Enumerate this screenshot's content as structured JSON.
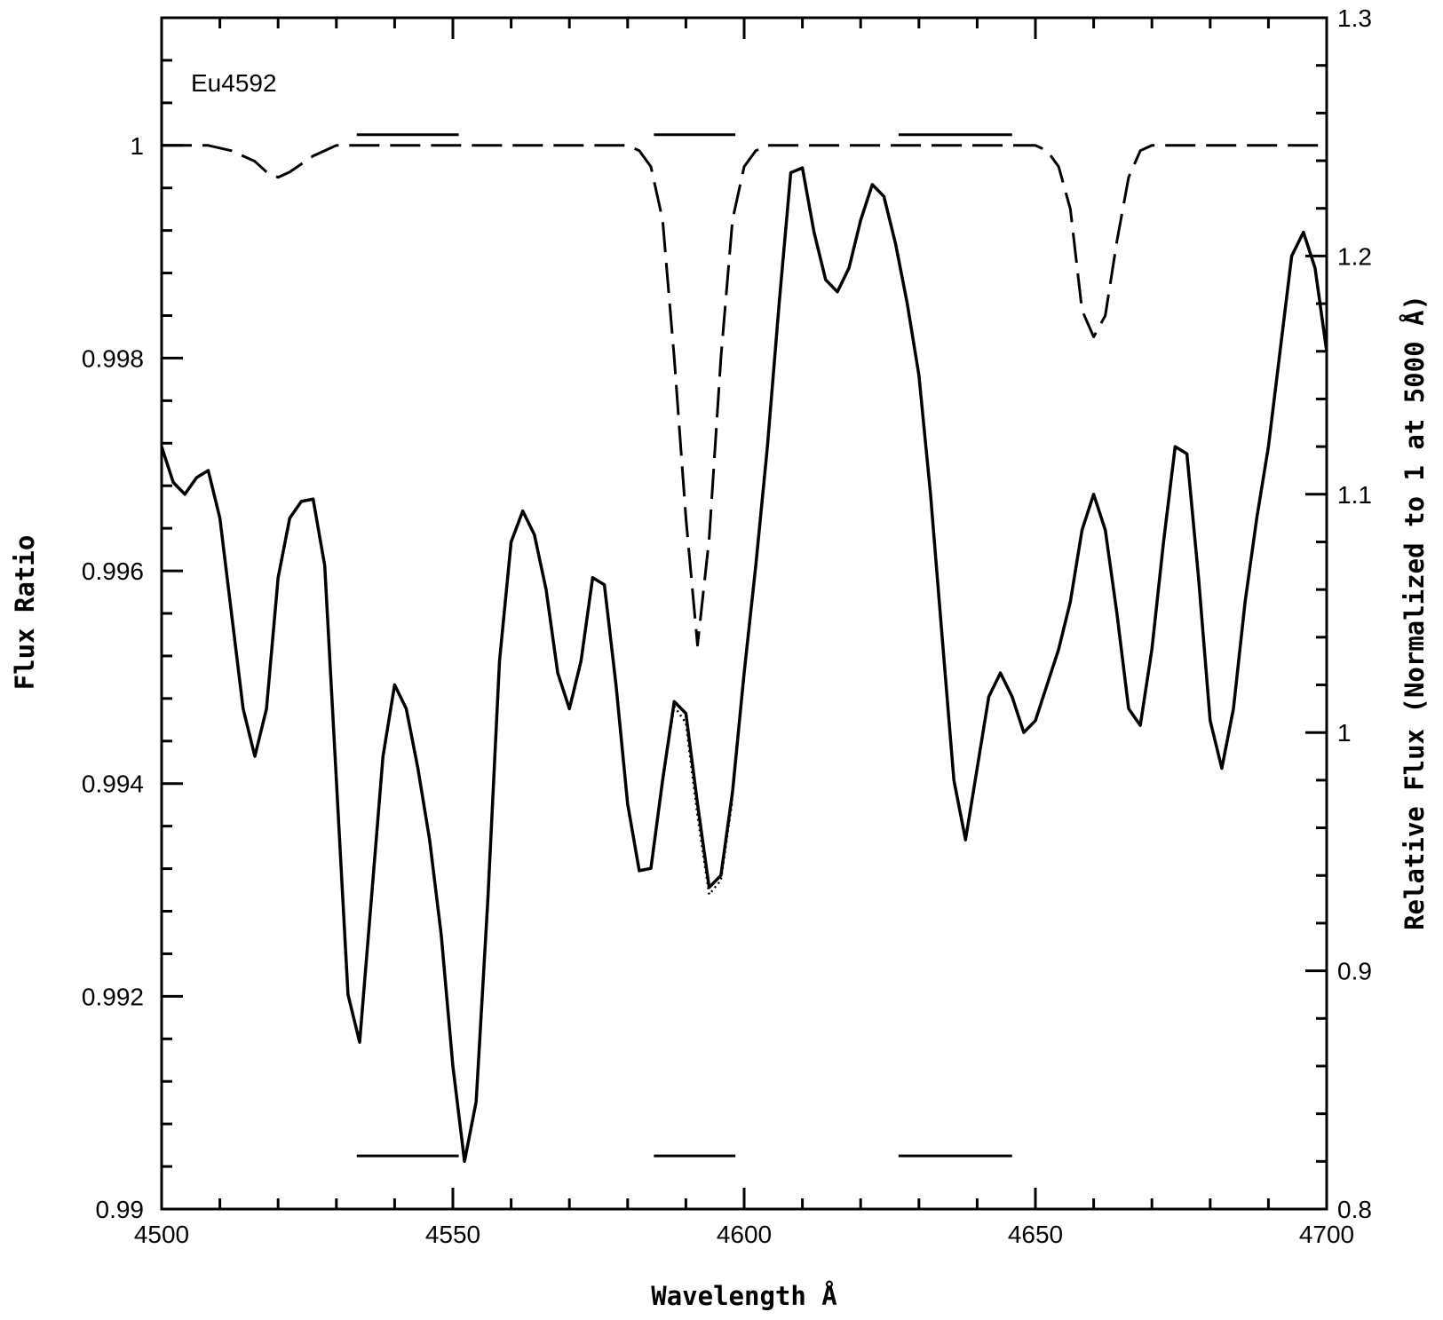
{
  "chart_data": {
    "type": "line",
    "annotation": "Eu4592",
    "xlabel": "Wavelength Å",
    "ylabel": "Flux Ratio",
    "y2label": "Relative Flux (Normalized to 1 at 5000 Å)",
    "xlim": [
      4500,
      4700
    ],
    "ylim": [
      0.99,
      1.0012
    ],
    "y2lim": [
      0.8,
      1.3
    ],
    "grid": false,
    "x_ticks": [
      4500,
      4550,
      4600,
      4650,
      4700
    ],
    "x_tick_labels": [
      "4500",
      "4550",
      "4600",
      "4650",
      "4700"
    ],
    "y_ticks": [
      0.99,
      0.992,
      0.994,
      0.996,
      0.998,
      1.0
    ],
    "y_tick_labels": [
      "0.99",
      "0.992",
      "0.994",
      "0.996",
      "0.998",
      "1"
    ],
    "y2_ticks": [
      0.8,
      0.9,
      1.0,
      1.1,
      1.2,
      1.3
    ],
    "y2_tick_labels": [
      "0.8",
      "0.9",
      "1",
      "1.1",
      "1.2",
      "1.3"
    ],
    "series": [
      {
        "style": "dashed",
        "axis": "left",
        "x": [
          4500,
          4508,
          4512,
          4516,
          4518,
          4520,
          4522,
          4526,
          4530,
          4560,
          4580,
          4582,
          4584,
          4586,
          4588,
          4590,
          4592,
          4594,
          4596,
          4598,
          4600,
          4602,
          4604,
          4640,
          4650,
          4652,
          4654,
          4656,
          4658,
          4660,
          4662,
          4664,
          4666,
          4668,
          4670,
          4700
        ],
        "values": [
          1.0,
          1.0,
          0.99995,
          0.99985,
          0.99975,
          0.9997,
          0.99975,
          0.9999,
          1.0,
          1.0,
          1.0,
          0.99995,
          0.9998,
          0.9993,
          0.998,
          0.9965,
          0.9953,
          0.9963,
          0.998,
          0.9993,
          0.9998,
          0.99995,
          1.0,
          1.0,
          1.0,
          0.99995,
          0.9998,
          0.9994,
          0.99845,
          0.9982,
          0.9984,
          0.9991,
          0.9997,
          0.99995,
          1.0,
          1.0
        ]
      },
      {
        "style": "solid",
        "axis": "right",
        "x": [
          4500,
          4502,
          4504,
          4506,
          4508,
          4510,
          4512,
          4514,
          4516,
          4518,
          4520,
          4522,
          4524,
          4526,
          4528,
          4530,
          4532,
          4534,
          4536,
          4538,
          4540,
          4542,
          4544,
          4546,
          4548,
          4550,
          4552,
          4554,
          4556,
          4558,
          4560,
          4562,
          4564,
          4566,
          4568,
          4570,
          4572,
          4574,
          4576,
          4578,
          4580,
          4582,
          4584,
          4586,
          4588,
          4590,
          4592,
          4594,
          4596,
          4598,
          4600,
          4602,
          4604,
          4606,
          4608,
          4610,
          4612,
          4614,
          4616,
          4618,
          4620,
          4622,
          4624,
          4626,
          4628,
          4630,
          4632,
          4634,
          4636,
          4638,
          4640,
          4642,
          4644,
          4646,
          4648,
          4650,
          4652,
          4654,
          4656,
          4658,
          4660,
          4662,
          4664,
          4666,
          4668,
          4670,
          4672,
          4674,
          4676,
          4678,
          4680,
          4682,
          4684,
          4686,
          4688,
          4690,
          4692,
          4694,
          4696,
          4698,
          4700
        ],
        "values": [
          1.12,
          1.105,
          1.1,
          1.107,
          1.11,
          1.09,
          1.05,
          1.01,
          0.99,
          1.01,
          1.065,
          1.09,
          1.097,
          1.098,
          1.07,
          0.98,
          0.89,
          0.87,
          0.93,
          0.99,
          1.02,
          1.01,
          0.985,
          0.955,
          0.915,
          0.86,
          0.82,
          0.845,
          0.93,
          1.03,
          1.08,
          1.093,
          1.083,
          1.06,
          1.025,
          1.01,
          1.03,
          1.065,
          1.062,
          1.02,
          0.97,
          0.942,
          0.943,
          0.98,
          1.013,
          1.008,
          0.97,
          0.935,
          0.94,
          0.975,
          1.025,
          1.07,
          1.12,
          1.18,
          1.235,
          1.237,
          1.21,
          1.19,
          1.185,
          1.195,
          1.215,
          1.23,
          1.225,
          1.205,
          1.18,
          1.15,
          1.1,
          1.04,
          0.98,
          0.955,
          0.985,
          1.015,
          1.025,
          1.015,
          1.0,
          1.005,
          1.02,
          1.035,
          1.055,
          1.085,
          1.1,
          1.085,
          1.05,
          1.01,
          1.003,
          1.035,
          1.08,
          1.12,
          1.117,
          1.065,
          1.005,
          0.985,
          1.01,
          1.055,
          1.09,
          1.12,
          1.16,
          1.2,
          1.21,
          1.195,
          1.16
        ]
      },
      {
        "style": "dotted",
        "axis": "right",
        "x": [
          4586,
          4588,
          4590,
          4592,
          4594,
          4596,
          4598
        ],
        "values": [
          0.98,
          1.011,
          1.004,
          0.965,
          0.932,
          0.938,
          0.972
        ]
      }
    ],
    "window_bars": {
      "axis": "left",
      "upper_y": 1.0001,
      "lower_y": 0.9905,
      "ranges": [
        [
          4533.5,
          4551
        ],
        [
          4584.5,
          4598.5
        ],
        [
          4626.5,
          4646
        ]
      ]
    }
  }
}
